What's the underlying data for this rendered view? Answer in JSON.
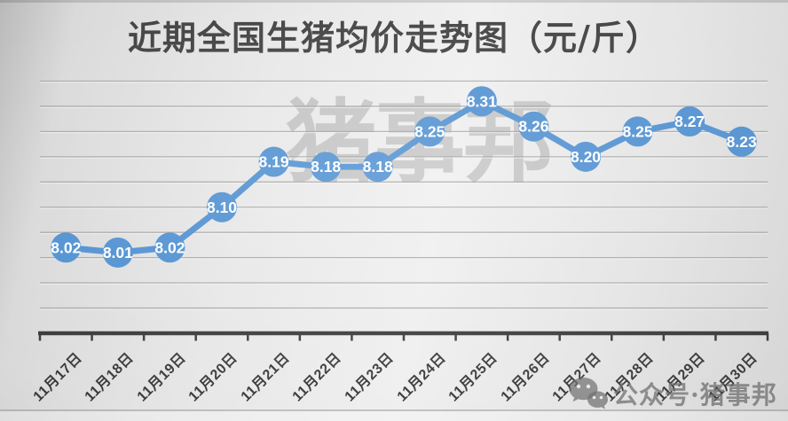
{
  "title": "近期全国生猪均价走势图（元/斤）",
  "watermark_center": "猪事邦",
  "watermark_bottom": "公众号·猪事邦",
  "icons": {
    "wechat": "wechat-icon"
  },
  "colors": {
    "accent_blue": "#4E8FD0",
    "point_label": "#ffffff",
    "axis": "#3a3a3a",
    "gridline": "#9d9d9d",
    "grid_emboss": "#f6f6f6",
    "title_text": "#3d3d3d",
    "xlabel_text": "#3a3a3a",
    "watermark_gray": "#9a9a9a"
  },
  "chart_data": {
    "type": "line",
    "title": "近期全国生猪均价走势图（元/斤）",
    "x": [
      "11月17日",
      "11月18日",
      "11月19日",
      "11月20日",
      "11月21日",
      "11月22日",
      "11月23日",
      "11月24日",
      "11月25日",
      "11月26日",
      "11月27日",
      "11月28日",
      "11月29日",
      "11月30日"
    ],
    "values": [
      8.02,
      8.01,
      8.02,
      8.1,
      8.19,
      8.18,
      8.18,
      8.25,
      8.31,
      8.26,
      8.2,
      8.25,
      8.27,
      8.23
    ],
    "point_labels": [
      "8.02",
      "8.01",
      "8.02",
      "8.10",
      "8.19",
      "8.18",
      "8.18",
      "8.25",
      "8.31",
      "8.26",
      "8.20",
      "8.25",
      "8.27",
      "8.23"
    ],
    "xlabel": "",
    "ylabel": "",
    "ylim": [
      7.85,
      8.35
    ],
    "grid_step": 0.05,
    "grid": true,
    "legend": false,
    "y_axis_labels_shown": false,
    "marker_style": "large-circle-with-value"
  }
}
